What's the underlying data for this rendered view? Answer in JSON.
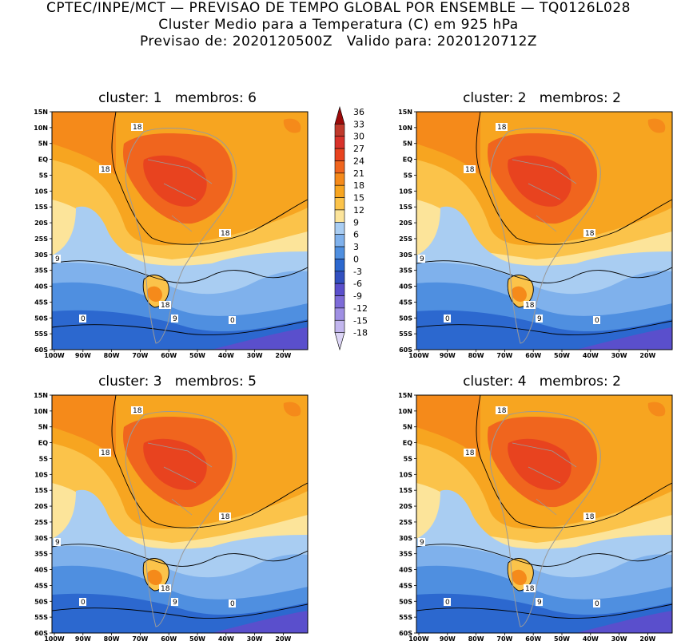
{
  "header": {
    "line1": "CPTEC/INPE/MCT — PREVISAO DE TEMPO GLOBAL POR ENSEMBLE — TQ0126L028",
    "line2": "Cluster Medio para a Temperatura (C) em 925 hPa",
    "line3": "Previsao de: 2020120500Z   Valido para: 2020120712Z"
  },
  "panels": [
    {
      "title": "cluster: 1   membros: 6"
    },
    {
      "title": "cluster: 2   membros: 2"
    },
    {
      "title": "cluster: 3   membros: 5"
    },
    {
      "title": "cluster: 4   membros: 2"
    }
  ],
  "axes": {
    "lat_labels": [
      "15N",
      "10N",
      "5N",
      "EQ",
      "5S",
      "10S",
      "15S",
      "20S",
      "25S",
      "30S",
      "35S",
      "40S",
      "45S",
      "50S",
      "55S",
      "60S"
    ],
    "lon_labels": [
      "100W",
      "90W",
      "80W",
      "70W",
      "60W",
      "50W",
      "40W",
      "30W",
      "20W"
    ]
  },
  "colorbar": {
    "levels": [
      "36",
      "33",
      "30",
      "27",
      "24",
      "21",
      "18",
      "15",
      "12",
      "9",
      "6",
      "3",
      "0",
      "-3",
      "-6",
      "-9",
      "-12",
      "-15",
      "-18"
    ],
    "colors": [
      "#9c0a0a",
      "#c0392b",
      "#d8322a",
      "#e8431f",
      "#f0651e",
      "#f58a1a",
      "#f7a520",
      "#fbc34a",
      "#fce49a",
      "#a9cdf2",
      "#7fb1ec",
      "#4f8fe0",
      "#2c68cf",
      "#3250c0",
      "#5a4fcc",
      "#7d6bd8",
      "#9f8fe3",
      "#c2b6ee",
      "#dcd5f5"
    ]
  },
  "contour_labels": [
    "18",
    "9",
    "0"
  ]
}
